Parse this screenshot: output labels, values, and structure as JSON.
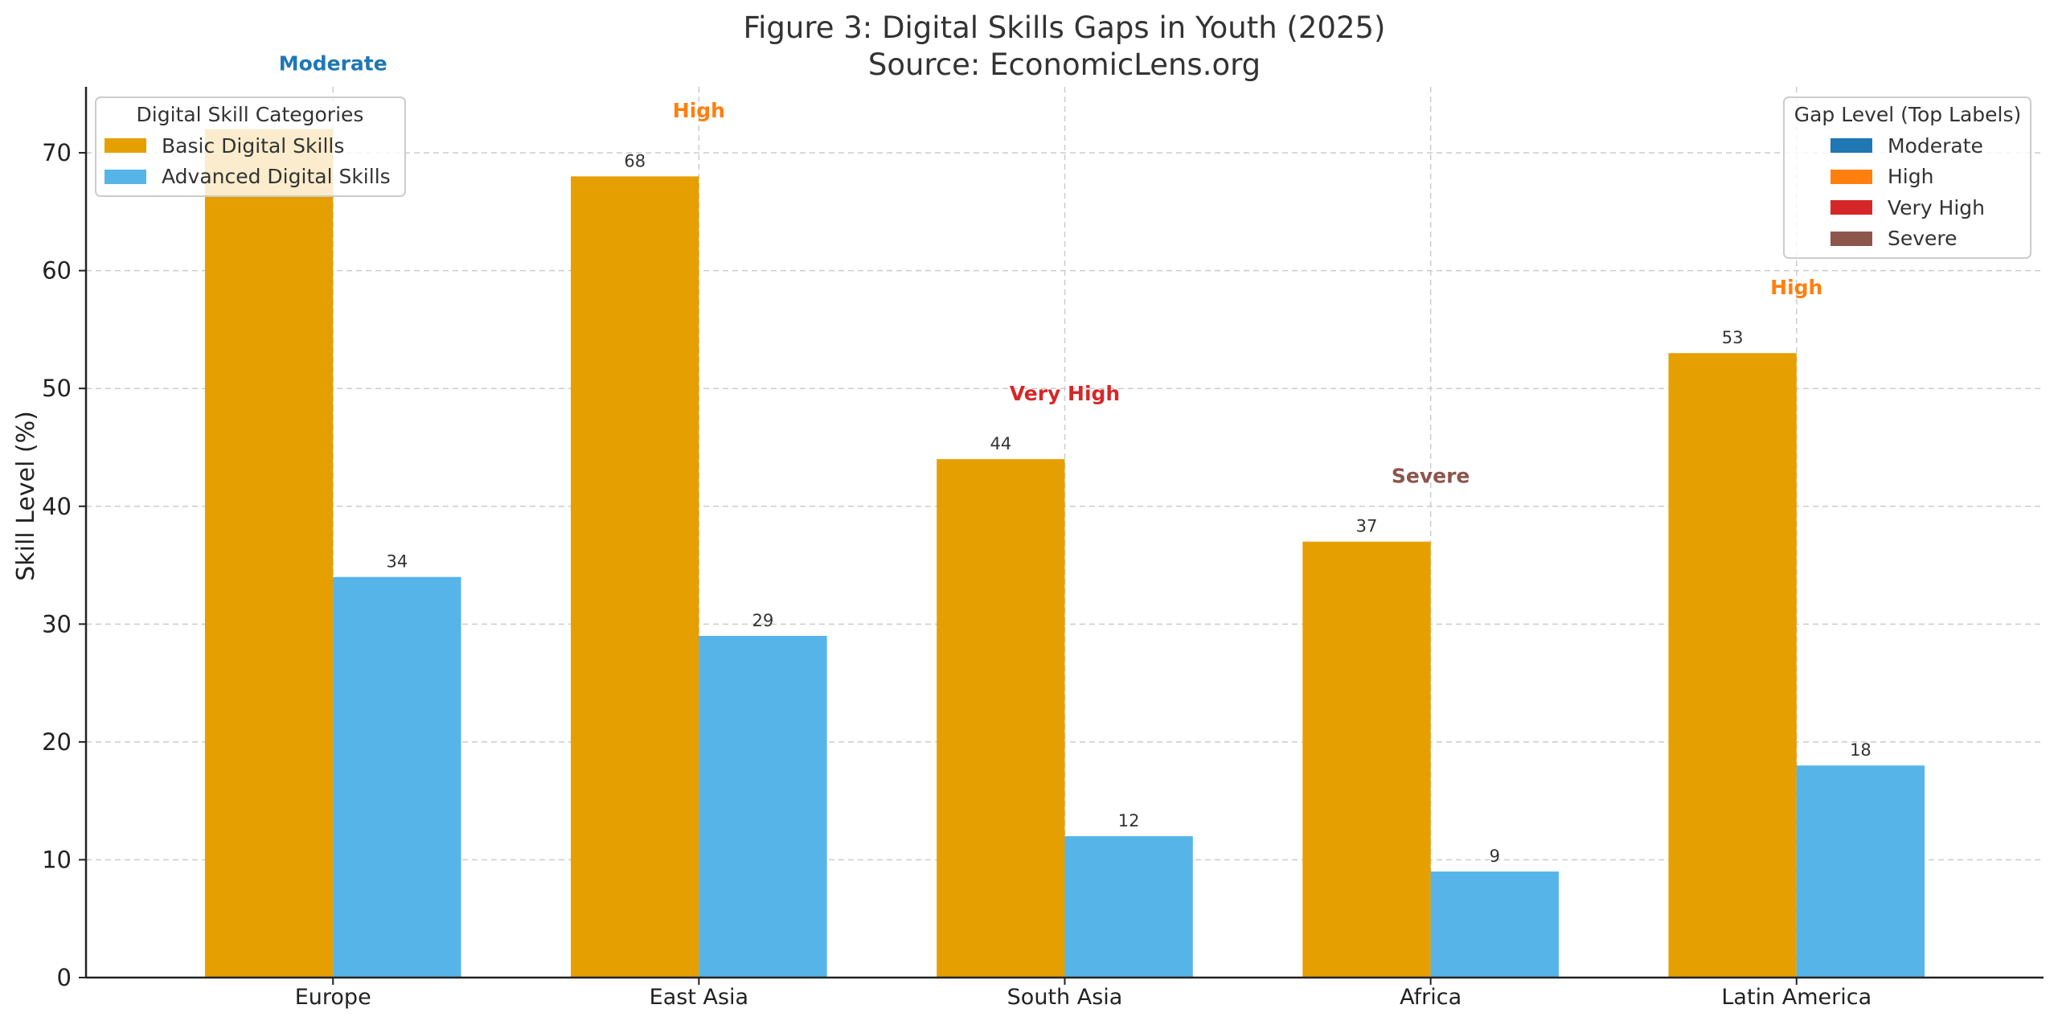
{
  "chart_data": {
    "type": "bar",
    "title": "Figure 3: Digital Skills Gaps in Youth (2025)",
    "subtitle": "Source: EconomicLens.org",
    "xlabel": "",
    "ylabel": "Skill Level (%)",
    "ylim": [
      0,
      75.6
    ],
    "yticks": [
      0,
      10,
      20,
      30,
      40,
      50,
      60,
      70
    ],
    "grid": true,
    "categories": [
      "Europe",
      "East Asia",
      "South Asia",
      "Africa",
      "Latin America"
    ],
    "series": [
      {
        "name": "Basic Digital Skills",
        "color": "#E69F00",
        "values": [
          72,
          68,
          44,
          37,
          53
        ],
        "data_labels": [
          "",
          "68",
          "44",
          "37",
          "53"
        ]
      },
      {
        "name": "Advanced Digital Skills",
        "color": "#56B4E9",
        "values": [
          34,
          29,
          12,
          9,
          18
        ],
        "data_labels": [
          "34",
          "29",
          "12",
          "9",
          "18"
        ]
      }
    ],
    "gap_annotations": [
      {
        "category": "Europe",
        "label": "Moderate",
        "color": "#1F77B4",
        "y": 77
      },
      {
        "category": "East Asia",
        "label": "High",
        "color": "#FF7F0E",
        "y": 73
      },
      {
        "category": "South Asia",
        "label": "Very High",
        "color": "#D62728",
        "y": 49
      },
      {
        "category": "Africa",
        "label": "Severe",
        "color": "#8C564B",
        "y": 42
      },
      {
        "category": "Latin America",
        "label": "High",
        "color": "#FF7F0E",
        "y": 58
      }
    ],
    "legend_categories": {
      "title": "Digital Skill Categories",
      "position": "top-left",
      "entries": [
        {
          "label": "Basic Digital Skills",
          "color": "#E69F00"
        },
        {
          "label": "Advanced Digital Skills",
          "color": "#56B4E9"
        }
      ]
    },
    "legend_gap": {
      "title": "Gap Level (Top Labels)",
      "position": "top-right",
      "entries": [
        {
          "label": "Moderate",
          "color": "#1F77B4"
        },
        {
          "label": "High",
          "color": "#FF7F0E"
        },
        {
          "label": "Very High",
          "color": "#D62728"
        },
        {
          "label": "Severe",
          "color": "#8C564B"
        }
      ]
    }
  }
}
